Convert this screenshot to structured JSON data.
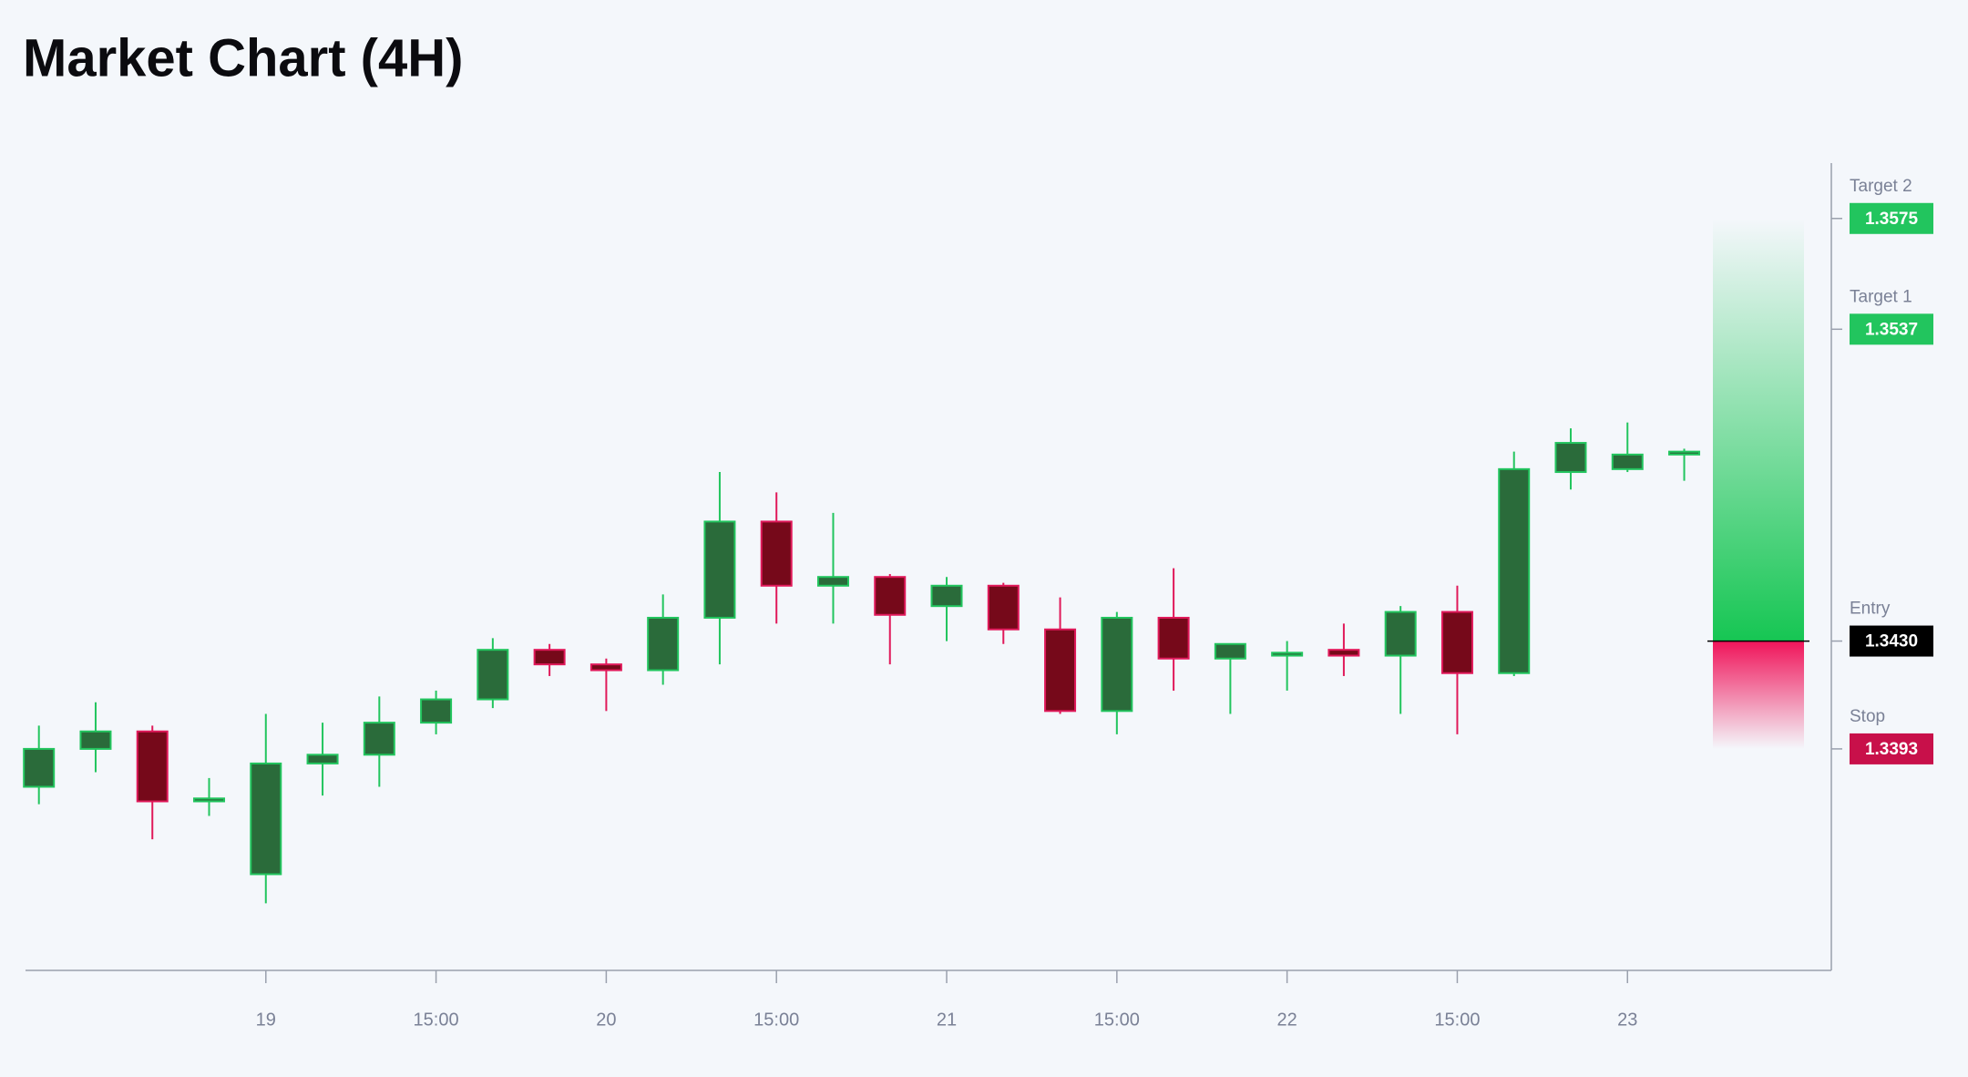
{
  "chart_data": {
    "type": "candlestick",
    "title": "Market Chart (4H)",
    "categories": [
      null,
      null,
      null,
      null,
      "19",
      null,
      null,
      "15:00",
      null,
      null,
      "20",
      null,
      null,
      "15:00",
      null,
      null,
      "21",
      null,
      null,
      "15:00",
      null,
      null,
      "22",
      null,
      null,
      "15:00",
      null,
      null,
      "23",
      null
    ],
    "open": [
      1.338,
      1.3393,
      1.3399,
      1.3375,
      1.335,
      1.3388,
      1.3391,
      1.3402,
      1.341,
      1.3427,
      1.3422,
      1.342,
      1.3438,
      1.3471,
      1.3449,
      1.3452,
      1.3442,
      1.3449,
      1.3434,
      1.3406,
      1.3438,
      1.3424,
      1.3425,
      1.3427,
      1.3425,
      1.344,
      1.3419,
      1.3488,
      1.3489,
      1.3494
    ],
    "high": [
      1.3401,
      1.3409,
      1.3401,
      1.3383,
      1.3405,
      1.3402,
      1.3411,
      1.3413,
      1.3431,
      1.3429,
      1.3424,
      1.3446,
      1.3488,
      1.3481,
      1.3474,
      1.3453,
      1.3452,
      1.345,
      1.3445,
      1.344,
      1.3455,
      1.3429,
      1.343,
      1.3436,
      1.3442,
      1.3449,
      1.3495,
      1.3503,
      1.3505,
      1.3496
    ],
    "low": [
      1.3374,
      1.3385,
      1.3362,
      1.337,
      1.334,
      1.3377,
      1.338,
      1.3398,
      1.3407,
      1.3418,
      1.3406,
      1.3415,
      1.3422,
      1.3436,
      1.3436,
      1.3422,
      1.343,
      1.3429,
      1.3405,
      1.3398,
      1.3413,
      1.3405,
      1.3413,
      1.3418,
      1.3405,
      1.3398,
      1.3418,
      1.3482,
      1.3488,
      1.3485
    ],
    "close": [
      1.3393,
      1.3399,
      1.3375,
      1.3376,
      1.3388,
      1.3391,
      1.3402,
      1.341,
      1.3427,
      1.3422,
      1.342,
      1.3438,
      1.3471,
      1.3449,
      1.3452,
      1.3439,
      1.3449,
      1.3434,
      1.3406,
      1.3438,
      1.3424,
      1.3429,
      1.3426,
      1.3425,
      1.344,
      1.3419,
      1.3489,
      1.3498,
      1.3494,
      1.3495
    ],
    "up_color": "#22c55e",
    "down_color": "#e0195a",
    "ylim": [
      1.3317,
      1.3594
    ],
    "levels": [
      {
        "name": "Target 2",
        "value": 1.3575,
        "label": "1.3575",
        "color": "#22c55e"
      },
      {
        "name": "Target 1",
        "value": 1.3537,
        "label": "1.3537",
        "color": "#22c55e"
      },
      {
        "name": "Entry",
        "value": 1.343,
        "label": "1.3430",
        "color": "#000000"
      },
      {
        "name": "Stop",
        "value": 1.3393,
        "label": "1.3393",
        "color": "#c8104a"
      }
    ]
  }
}
